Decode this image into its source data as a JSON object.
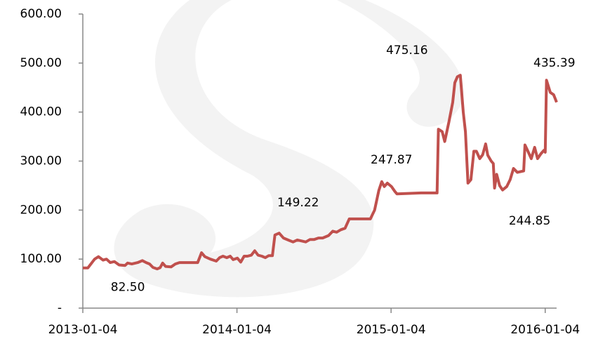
{
  "chart_data": {
    "type": "line",
    "x": [
      "2013-01-04",
      "2013-01-16",
      "2013-02-01",
      "2013-02-10",
      "2013-02-21",
      "2013-03-01",
      "2013-03-10",
      "2013-03-20",
      "2013-03-31",
      "2013-04-14",
      "2013-04-20",
      "2013-04-30",
      "2013-05-14",
      "2013-05-25",
      "2013-06-03",
      "2013-06-11",
      "2013-06-19",
      "2013-06-29",
      "2013-07-06",
      "2013-07-12",
      "2013-07-19",
      "2013-08-01",
      "2013-08-11",
      "2013-08-21",
      "2013-09-14",
      "2013-10-03",
      "2013-10-12",
      "2013-10-20",
      "2013-11-02",
      "2013-11-16",
      "2013-11-24",
      "2013-12-02",
      "2013-12-11",
      "2013-12-19",
      "2013-12-26",
      "2014-01-05",
      "2014-01-13",
      "2014-01-21",
      "2014-01-29",
      "2014-02-07",
      "2014-02-15",
      "2014-02-23",
      "2014-03-04",
      "2014-03-12",
      "2014-03-20",
      "2014-03-29",
      "2014-04-04",
      "2014-04-14",
      "2014-04-24",
      "2014-05-08",
      "2014-05-17",
      "2014-05-27",
      "2014-06-06",
      "2014-06-16",
      "2014-06-26",
      "2014-07-06",
      "2014-07-16",
      "2014-07-26",
      "2014-08-09",
      "2014-08-19",
      "2014-08-28",
      "2014-09-07",
      "2014-09-17",
      "2014-09-27",
      "2014-11-03",
      "2014-11-16",
      "2014-11-26",
      "2014-12-06",
      "2014-12-13",
      "2014-12-19",
      "2014-12-26",
      "2015-01-05",
      "2015-01-13",
      "2015-01-18",
      "2015-03-16",
      "2015-04-23",
      "2015-04-26",
      "2015-05-05",
      "2015-05-11",
      "2015-05-21",
      "2015-05-30",
      "2015-06-04",
      "2015-06-10",
      "2015-06-17",
      "2015-06-24",
      "2015-06-29",
      "2015-07-05",
      "2015-07-12",
      "2015-07-19",
      "2015-07-25",
      "2015-08-02",
      "2015-08-09",
      "2015-08-16",
      "2015-08-21",
      "2015-08-29",
      "2015-09-03",
      "2015-09-06",
      "2015-09-11",
      "2015-09-18",
      "2015-09-25",
      "2015-10-05",
      "2015-10-13",
      "2015-10-21",
      "2015-10-30",
      "2015-11-14",
      "2015-11-17",
      "2015-11-23",
      "2015-12-02",
      "2015-12-10",
      "2015-12-17",
      "2015-12-25",
      "2016-01-01",
      "2016-01-04",
      "2016-01-07",
      "2016-01-16",
      "2016-01-24",
      "2016-01-31"
    ],
    "series": [
      {
        "color": "#c0504d",
        "values": [
          82,
          82,
          100,
          105,
          98,
          100,
          93,
          95,
          88,
          87,
          92,
          90,
          93,
          97,
          93,
          90,
          83,
          80,
          82.5,
          92,
          85,
          84,
          90,
          93,
          93,
          93,
          113,
          105,
          100,
          96,
          103,
          106,
          103,
          106,
          99,
          102,
          94,
          106,
          106,
          108,
          117,
          108,
          106,
          103,
          107,
          107,
          149.22,
          153,
          143,
          138,
          135,
          139,
          137,
          135,
          140,
          140,
          143,
          143,
          148,
          157,
          155,
          160,
          163,
          182,
          182,
          182,
          200,
          240,
          258,
          248,
          255,
          247.87,
          238,
          233,
          235,
          235,
          365,
          360,
          340,
          380,
          420,
          460,
          472,
          475.16,
          400,
          360,
          255,
          262,
          320,
          320,
          305,
          313,
          335,
          312,
          300,
          295,
          244.85,
          273,
          250,
          241,
          248,
          262,
          285,
          277,
          280,
          333,
          322,
          305,
          328,
          305,
          315,
          322,
          318,
          465,
          440,
          435.39,
          420
        ],
        "value_labels": [
          null,
          null,
          null,
          null,
          null,
          null,
          null,
          null,
          null,
          null,
          null,
          null,
          null,
          null,
          null,
          null,
          null,
          null,
          "82.50",
          null,
          null,
          null,
          null,
          null,
          null,
          null,
          null,
          null,
          null,
          null,
          null,
          null,
          null,
          null,
          null,
          null,
          null,
          null,
          null,
          null,
          null,
          null,
          null,
          null,
          null,
          null,
          "149.22",
          null,
          null,
          null,
          null,
          null,
          null,
          null,
          null,
          null,
          null,
          null,
          null,
          null,
          null,
          null,
          null,
          null,
          null,
          null,
          null,
          null,
          null,
          null,
          null,
          "247.87",
          null,
          null,
          null,
          null,
          null,
          null,
          null,
          null,
          null,
          null,
          null,
          "475.16",
          null,
          null,
          null,
          null,
          null,
          null,
          null,
          null,
          null,
          null,
          null,
          null,
          "244.85",
          null,
          null,
          null,
          null,
          null,
          null,
          null,
          null,
          null,
          null,
          null,
          null,
          null,
          null,
          null,
          null,
          null,
          null,
          "435.39",
          null
        ]
      }
    ],
    "xlim": [
      "2013-01-04",
      "2016-01-31"
    ],
    "xticks": [
      "2013-01-04",
      "2014-01-04",
      "2015-01-04",
      "2016-01-04"
    ],
    "ylim": [
      0,
      600
    ],
    "yticks": [
      {
        "value": 0,
        "label": "-"
      },
      {
        "value": 100,
        "label": "100.00"
      },
      {
        "value": 200,
        "label": "200.00"
      },
      {
        "value": 300,
        "label": "300.00"
      },
      {
        "value": 400,
        "label": "400.00"
      },
      {
        "value": 500,
        "label": "500.00"
      },
      {
        "value": 600,
        "label": "600.00"
      }
    ]
  }
}
